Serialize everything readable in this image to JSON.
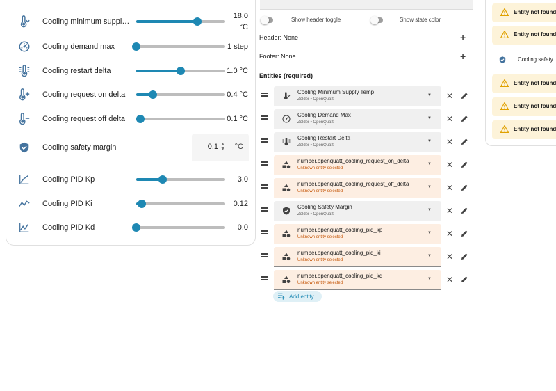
{
  "card": {
    "rows": [
      {
        "name": "Cooling minimum supply t...",
        "value": "18.0",
        "unit": "°C",
        "level": 0.69,
        "icon": "thermometer-chevron-down-icon"
      },
      {
        "name": "Cooling demand max",
        "value": "1 step",
        "level": 0.0,
        "icon": "gauge-icon"
      },
      {
        "name": "Cooling restart delta",
        "value": "1.0 °C",
        "level": 0.5,
        "icon": "thermometer-lines-icon"
      },
      {
        "name": "Cooling request on delta",
        "value": "0.4 °C",
        "level": 0.19,
        "icon": "thermometer-plus-icon"
      },
      {
        "name": "Cooling request off delta",
        "value": "0.1 °C",
        "level": 0.05,
        "icon": "thermometer-minus-icon"
      },
      {
        "name": "Cooling safety margin",
        "value": "0.1",
        "unit": "°C",
        "icon": "shield-check-icon"
      },
      {
        "name": "Cooling PID Kp",
        "value": "3.0",
        "level": 0.3,
        "icon": "chart-line-icon"
      },
      {
        "name": "Cooling PID Ki",
        "value": "0.12",
        "level": 0.06,
        "icon": "chart-bell-icon"
      },
      {
        "name": "Cooling PID Kd",
        "value": "0.0",
        "level": 0.0,
        "icon": "chart-areaspline-icon"
      }
    ]
  },
  "editor": {
    "show_header_toggle": "Show header toggle",
    "show_state_color": "Show state color",
    "header": "Header: None",
    "footer": "Footer: None",
    "entities_title": "Entities (required)",
    "entities": [
      {
        "title": "Cooling Minimum Supply Temp",
        "sub": "Zolder • OpenQuatt",
        "state": "ok",
        "icon": "thermometer-chevron-down-icon"
      },
      {
        "title": "Cooling Demand Max",
        "sub": "Zolder • OpenQuatt",
        "state": "ok",
        "icon": "gauge-icon"
      },
      {
        "title": "Cooling Restart Delta",
        "sub": "Zolder • OpenQuatt",
        "state": "ok",
        "icon": "thermometer-lines-icon"
      },
      {
        "title": "number.openquatt_cooling_request_on_delta",
        "sub": "Unknown entity selected",
        "state": "warn",
        "icon": "shapes-icon"
      },
      {
        "title": "number.openquatt_cooling_request_off_delta",
        "sub": "Unknown entity selected",
        "state": "warn",
        "icon": "shapes-icon"
      },
      {
        "title": "Cooling Safety Margin",
        "sub": "Zolder • OpenQuatt",
        "state": "ok",
        "icon": "shield-check-icon"
      },
      {
        "title": "number.openquatt_cooling_pid_kp",
        "sub": "Unknown entity selected",
        "state": "warn",
        "icon": "shapes-icon"
      },
      {
        "title": "number.openquatt_cooling_pid_ki",
        "sub": "Unknown entity selected",
        "state": "warn",
        "icon": "shapes-icon"
      },
      {
        "title": "number.openquatt_cooling_pid_kd",
        "sub": "Unknown entity selected",
        "state": "warn",
        "icon": "shapes-icon"
      }
    ],
    "add_entity": "Add entity"
  },
  "preview": {
    "warning_label": "Entity not found",
    "safety_label": "Cooling safety"
  },
  "colors": {
    "accent": "#1e88b3",
    "warning_bg": "#fdf3d9",
    "unknown_bg": "#fdeee2",
    "error_text": "#c25100"
  }
}
